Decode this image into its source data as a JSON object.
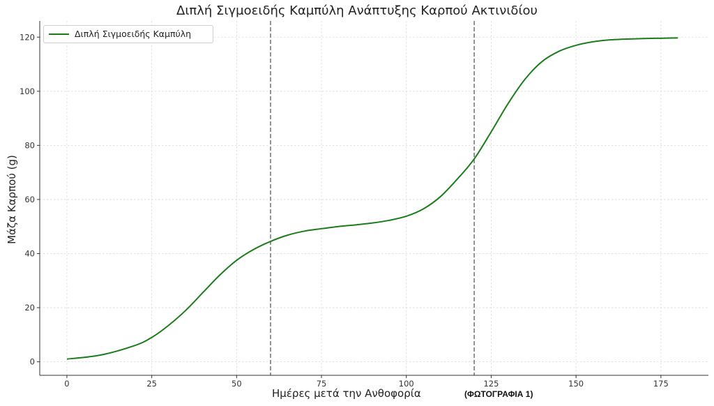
{
  "chart_data": {
    "type": "line",
    "title": "Διπλή Σιγμοειδής Καμπύλη Ανάπτυξης Καρπού Ακτινιδίου",
    "xlabel": "Ημέρες μετά την Ανθοφορία",
    "ylabel": "Μάζα Καρπού (g)",
    "annotation": "(ΦΩΤΟΓΡΑΦΙΑ 1)",
    "xlim": [
      -8,
      189
    ],
    "ylim": [
      -5,
      126
    ],
    "xticks": [
      0,
      25,
      50,
      75,
      100,
      125,
      150,
      175
    ],
    "yticks": [
      0,
      20,
      40,
      60,
      80,
      100,
      120
    ],
    "grid": true,
    "legend_position": "top-left",
    "vlines": [
      60,
      120
    ],
    "series": [
      {
        "name": "Διπλή Σιγμοειδής Καμπύλη",
        "color": "#1a7d1a",
        "x": [
          0,
          10,
          20,
          25,
          30,
          35,
          40,
          45,
          50,
          55,
          60,
          65,
          70,
          75,
          80,
          85,
          90,
          95,
          100,
          105,
          110,
          115,
          120,
          125,
          130,
          135,
          140,
          145,
          150,
          155,
          160,
          165,
          170,
          175,
          180
        ],
        "y": [
          1,
          2.5,
          6,
          9,
          13.5,
          19,
          25.5,
          32,
          37.5,
          41.5,
          44.5,
          46.8,
          48.3,
          49.2,
          50,
          50.6,
          51.3,
          52.3,
          53.8,
          56.5,
          61,
          67.5,
          75,
          85,
          95.5,
          104.5,
          111,
          114.8,
          117,
          118.3,
          119,
          119.3,
          119.5,
          119.6,
          119.7
        ]
      }
    ]
  }
}
